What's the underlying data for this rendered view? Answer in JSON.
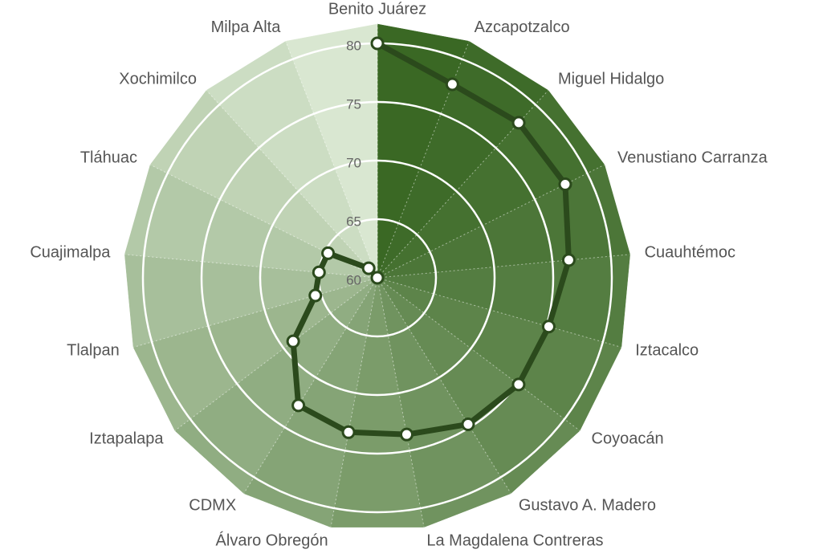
{
  "chart_data": {
    "type": "radar",
    "categories": [
      "Benito Juárez",
      "Azcapotzalco",
      "Miguel Hidalgo",
      "Venustiano Carranza",
      "Cuauhtémoc",
      "Iztacalco",
      "Coyoacán",
      "Gustavo A. Madero",
      "La Magdalena Contreras",
      "Álvaro Obregón",
      "CDMX",
      "Iztapalapa",
      "Tlalpan",
      "Cuajimalpa",
      "Tláhuac",
      "Xochimilco",
      "Milpa Alta"
    ],
    "values": [
      80,
      77.7,
      77.9,
      77.9,
      76.4,
      75.2,
      75.1,
      74.7,
      73.6,
      73.4,
      72.8,
      69.0,
      65.5,
      65.0,
      64.7,
      61.1,
      60.0
    ],
    "color": "#2b4a1c",
    "ylim": [
      60,
      80
    ],
    "yticks": [
      60,
      65,
      70,
      75,
      80
    ],
    "grid": true
  }
}
